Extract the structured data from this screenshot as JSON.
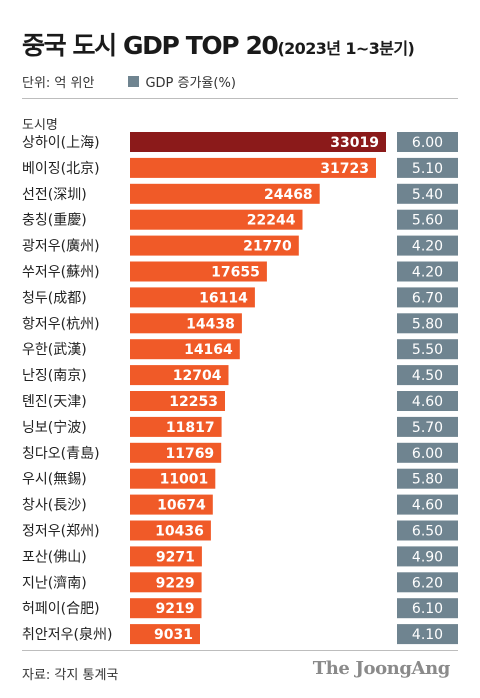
{
  "title": {
    "main": "중국 도시 GDP TOP 20",
    "sub": "(2023년 1~3분기)"
  },
  "legend": {
    "unit": "단위: 억 위안",
    "growth_label": "GDP 증가율(%)"
  },
  "colors": {
    "top_bar": "#8b1a1a",
    "bar": "#f05a28",
    "growth_box": "#6f8490",
    "text_on_bar": "#ffffff"
  },
  "source": "자료: 각지 통계국",
  "brand": "The JoongAng",
  "chart_data": {
    "type": "bar",
    "orientation": "horizontal",
    "category_header": "도시명",
    "categories": [
      "상하이(上海)",
      "베이징(北京)",
      "선전(深圳)",
      "충칭(重慶)",
      "광저우(廣州)",
      "쑤저우(蘇州)",
      "청두(成都)",
      "항저우(杭州)",
      "우한(武漢)",
      "난징(南京)",
      "톈진(天津)",
      "닝보(宁波)",
      "칭다오(青島)",
      "우시(無錫)",
      "창사(長沙)",
      "정저우(郑州)",
      "포산(佛山)",
      "지난(濟南)",
      "허페이(合肥)",
      "취안저우(泉州)"
    ],
    "series": [
      {
        "name": "",
        "values": [
          33019,
          31723,
          24468,
          22244,
          21770,
          17655,
          16114,
          14438,
          14164,
          12704,
          12253,
          11817,
          11769,
          11001,
          10674,
          10436,
          9271,
          9229,
          9219,
          9031
        ]
      },
      {
        "name": "GDP 증가율(%)",
        "values": [
          "6.00",
          "5.10",
          "5.40",
          "5.60",
          "4.20",
          "4.20",
          "6.70",
          "5.80",
          "5.50",
          "4.50",
          "4.60",
          "5.70",
          "6.00",
          "5.80",
          "4.60",
          "6.50",
          "4.90",
          "6.20",
          "6.10",
          "4.10"
        ]
      }
    ]
  }
}
